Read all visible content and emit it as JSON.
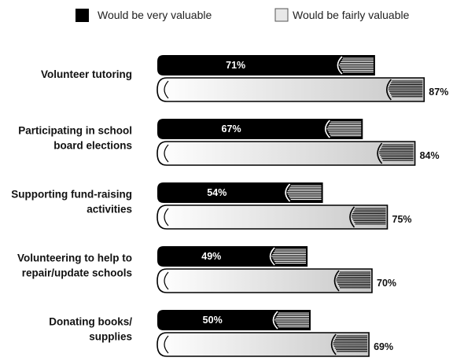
{
  "chart_data": {
    "type": "bar",
    "orientation": "horizontal",
    "categories": [
      [
        "Volunteer tutoring"
      ],
      [
        "Participating in school",
        "board elections"
      ],
      [
        "Supporting fund-raising",
        "activities"
      ],
      [
        "Volunteering to help to",
        "repair/update schools"
      ],
      [
        "Donating books/",
        "supplies"
      ]
    ],
    "series": [
      {
        "name": "Would be very valuable",
        "values": [
          71,
          67,
          54,
          49,
          50
        ],
        "labels": [
          "71%",
          "67%",
          "54%",
          "49%",
          "50%"
        ],
        "color": "#000000"
      },
      {
        "name": "Would be fairly valuable",
        "values": [
          87,
          84,
          75,
          70,
          69
        ],
        "labels": [
          "87%",
          "84%",
          "75%",
          "70%",
          "69%"
        ],
        "color": "#e6e6e6"
      }
    ],
    "legend_position": "top",
    "grid": false
  }
}
